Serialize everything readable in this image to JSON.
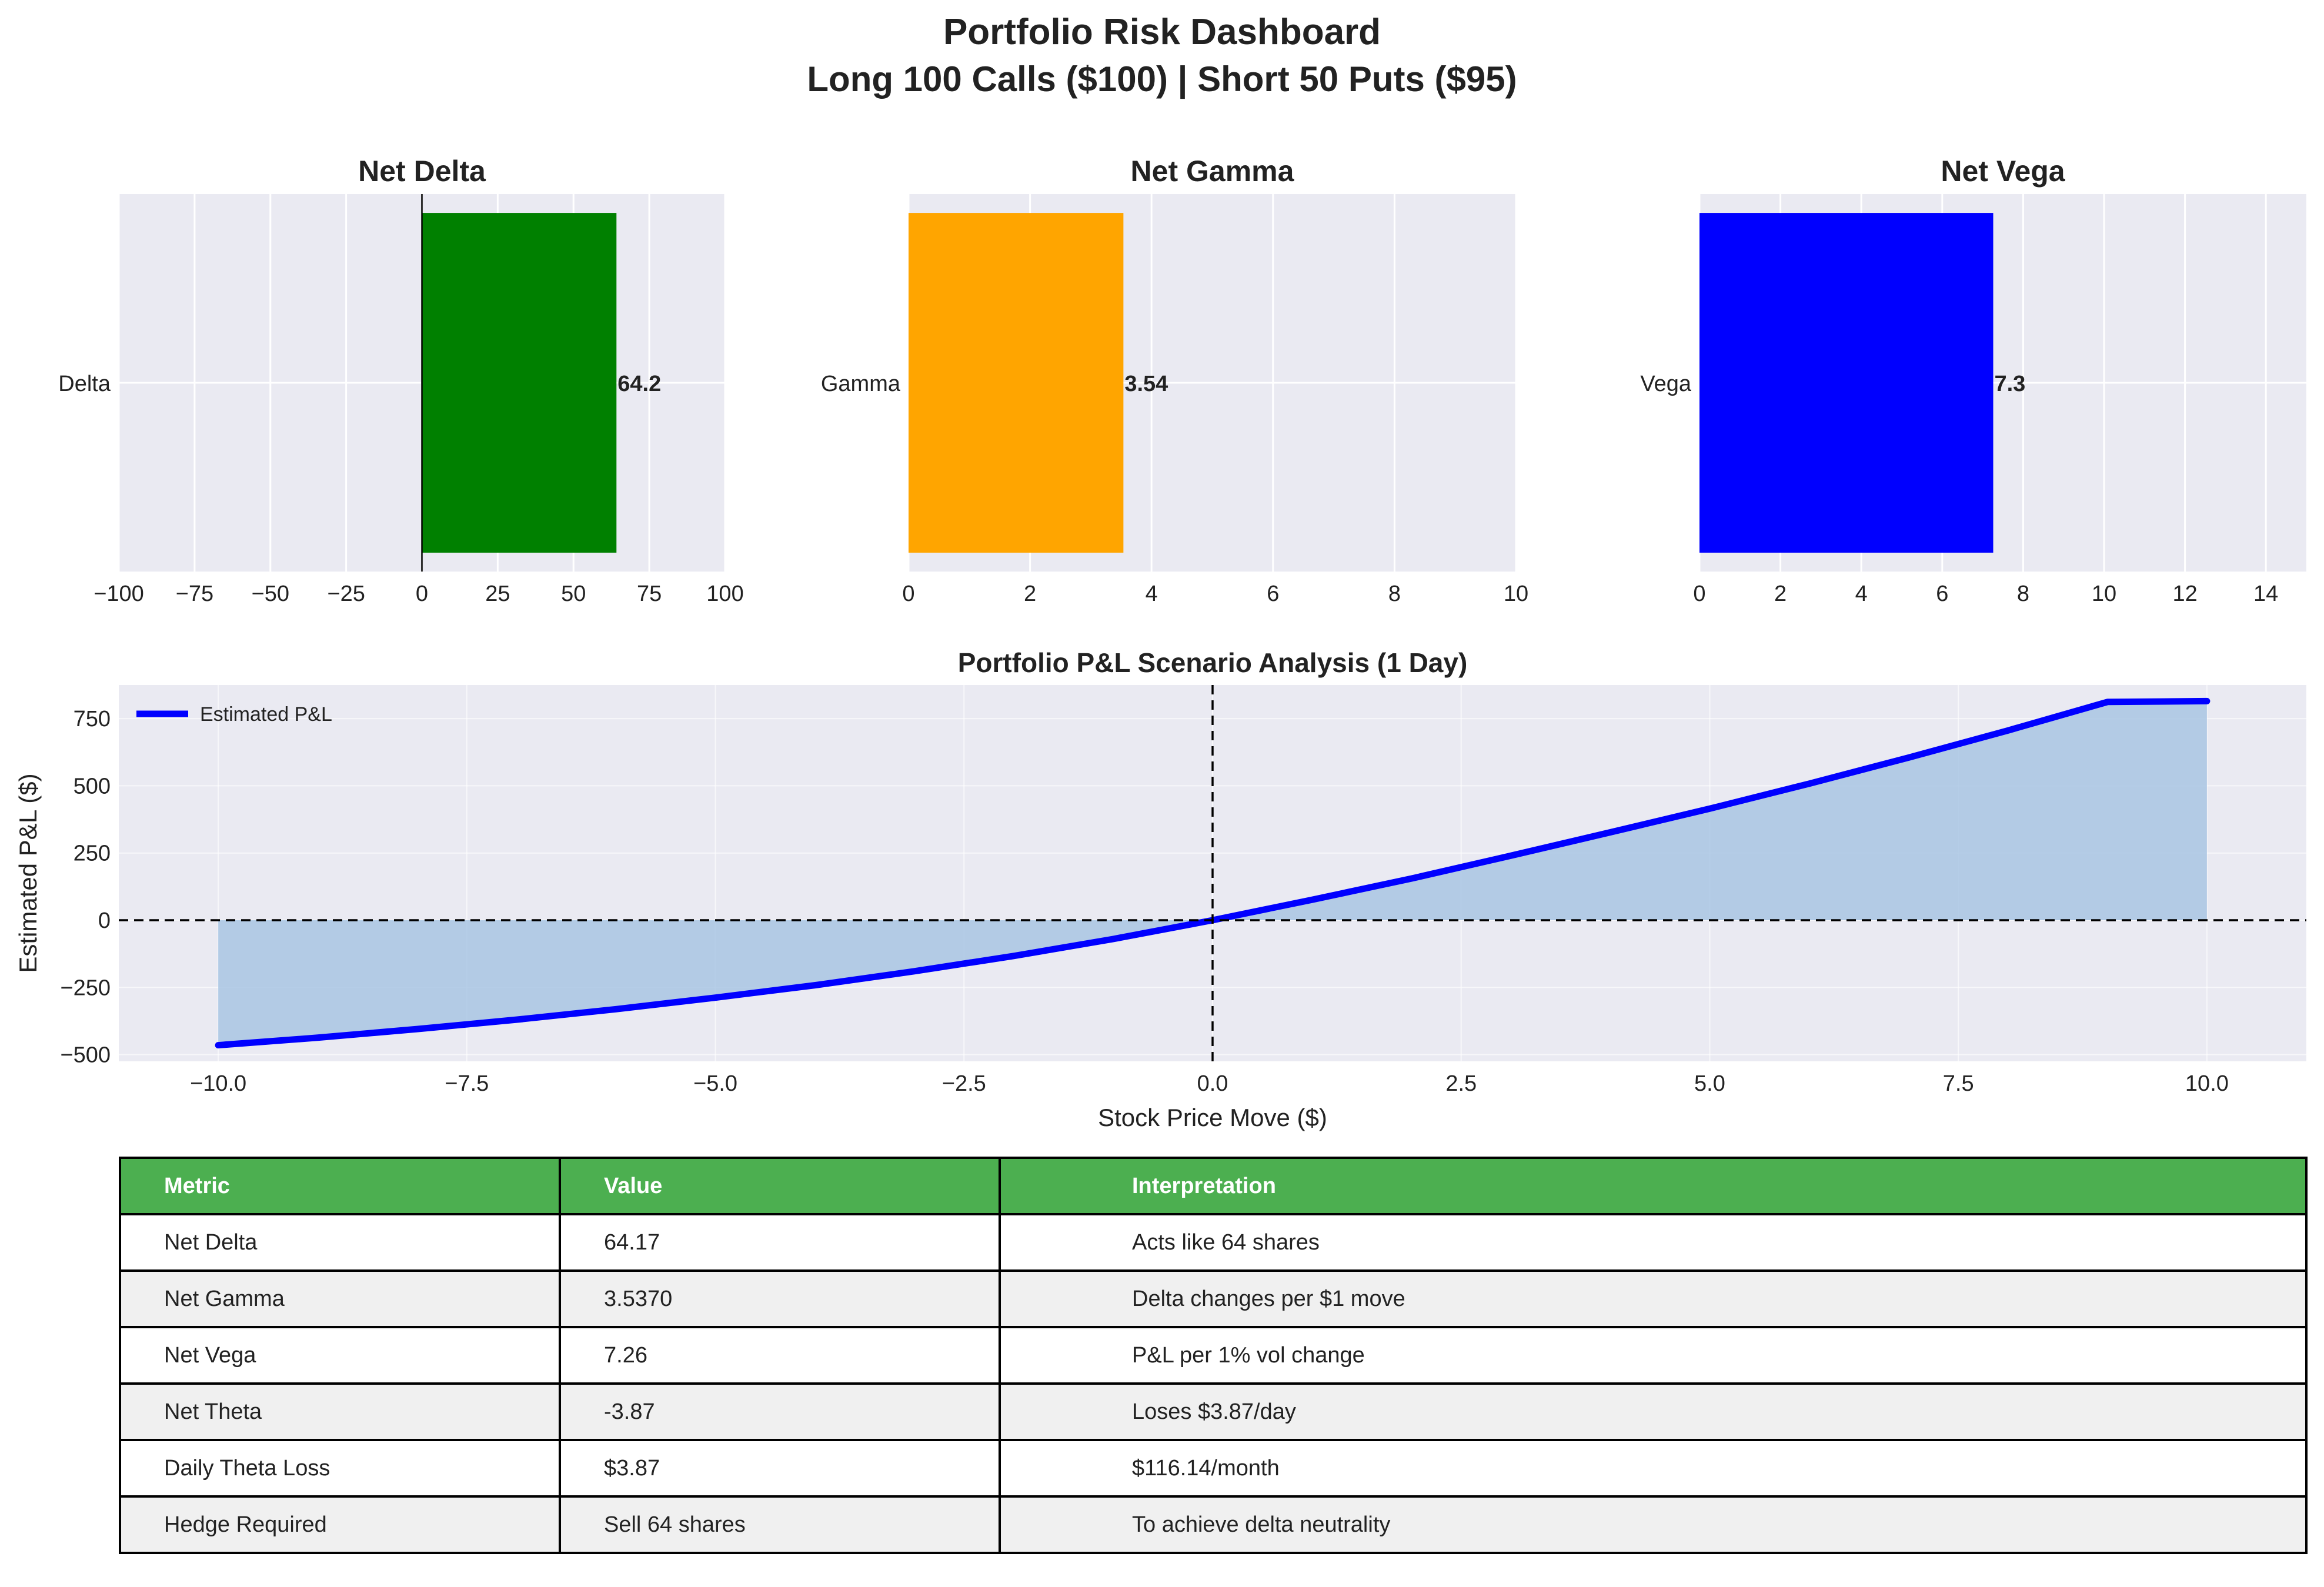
{
  "figure": {
    "title_line1": "Portfolio Risk Dashboard",
    "title_line2": "Long 100 Calls ($100) | Short 50 Puts ($95)"
  },
  "chart_data": [
    {
      "type": "bar",
      "orientation": "horizontal",
      "title": "Net Delta",
      "categories": [
        "Delta"
      ],
      "values": [
        64.17
      ],
      "value_label": "64.2",
      "color": "#008000",
      "xlim": [
        -100,
        100
      ],
      "xticks": [
        "−100",
        "−75",
        "−50",
        "−25",
        "0",
        "25",
        "50",
        "75",
        "100"
      ],
      "xtick_values": [
        -100,
        -75,
        -50,
        -25,
        0,
        25,
        50,
        75,
        100
      ],
      "zero_line": true
    },
    {
      "type": "bar",
      "orientation": "horizontal",
      "title": "Net Gamma",
      "categories": [
        "Gamma"
      ],
      "values": [
        3.537
      ],
      "value_label": "3.54",
      "color": "#ffa500",
      "xlim": [
        0,
        10
      ],
      "xticks": [
        "0",
        "2",
        "4",
        "6",
        "8",
        "10"
      ],
      "xtick_values": [
        0,
        2,
        4,
        6,
        8,
        10
      ]
    },
    {
      "type": "bar",
      "orientation": "horizontal",
      "title": "Net Vega",
      "categories": [
        "Vega"
      ],
      "values": [
        7.26
      ],
      "value_label": "7.3",
      "color": "#0000ff",
      "xlim": [
        0,
        15
      ],
      "xticks": [
        "0",
        "2",
        "4",
        "6",
        "8",
        "10",
        "12",
        "14"
      ],
      "xtick_values": [
        0,
        2,
        4,
        6,
        8,
        10,
        12,
        14
      ]
    },
    {
      "type": "area",
      "title": "Portfolio P&L Scenario Analysis (1 Day)",
      "xlabel": "Stock Price Move ($)",
      "ylabel": "Estimated P&L ($)",
      "xlim": [
        -11,
        11
      ],
      "ylim": [
        -525,
        875
      ],
      "xticks": [
        "−10.0",
        "−7.5",
        "−5.0",
        "−2.5",
        "0.0",
        "2.5",
        "5.0",
        "7.5",
        "10.0"
      ],
      "xtick_values": [
        -10,
        -7.5,
        -5,
        -2.5,
        0,
        2.5,
        5,
        7.5,
        10
      ],
      "yticks": [
        "−500",
        "−250",
        "0",
        "250",
        "500",
        "750"
      ],
      "ytick_values": [
        -500,
        -250,
        0,
        250,
        500,
        750
      ],
      "legend": "top-left",
      "series": [
        {
          "name": "Estimated P&L",
          "color": "#0000ff",
          "fill": "#a9c6e3",
          "x": [
            -10,
            -9,
            -8,
            -7,
            -6,
            -5,
            -4,
            -3,
            -2,
            -1,
            0,
            1,
            2,
            3,
            4,
            5,
            6,
            7,
            8,
            9,
            10
          ],
          "y": [
            -465,
            -437,
            -405,
            -370,
            -331,
            -288,
            -242,
            -190,
            -133,
            -70,
            0,
            76,
            155,
            240,
            327,
            415,
            508,
            605,
            706,
            812,
            815
          ]
        }
      ],
      "reference_lines": {
        "x_zero_dashed": true,
        "y_zero_dashed": true
      }
    }
  ],
  "table": {
    "headers": [
      "Metric",
      "Value",
      "Interpretation"
    ],
    "rows": [
      [
        "Net Delta",
        "64.17",
        "Acts like 64 shares"
      ],
      [
        "Net Gamma",
        "3.5370",
        "Delta changes per $1 move"
      ],
      [
        "Net Vega",
        "7.26",
        "P&L per 1% vol change"
      ],
      [
        "Net Theta",
        "-3.87",
        "Loses $3.87/day"
      ],
      [
        "Daily Theta Loss",
        "$3.87",
        "$116.14/month"
      ],
      [
        "Hedge Required",
        "Sell 64 shares",
        "To achieve delta neutrality"
      ]
    ]
  }
}
